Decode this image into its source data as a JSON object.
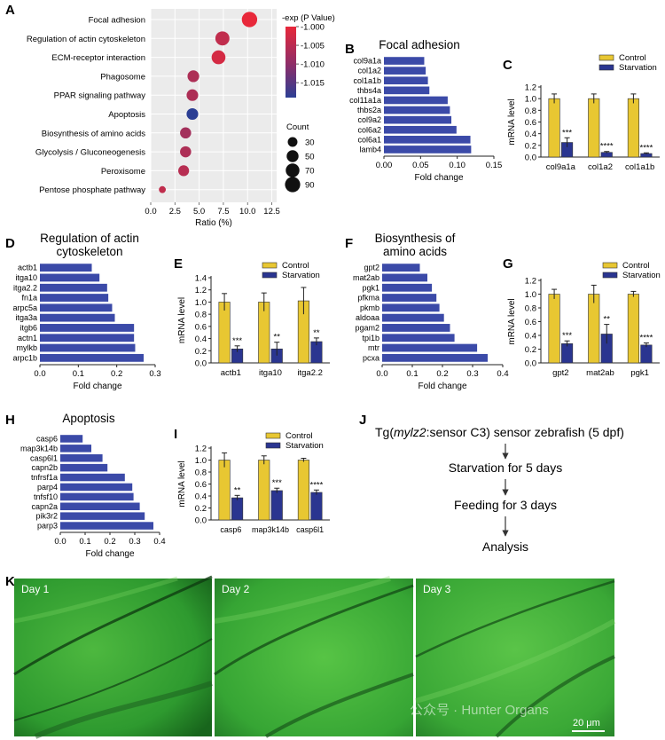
{
  "colors": {
    "hbar": "#3b4aa8",
    "control": "#e8c732",
    "starvation": "#2a3590",
    "dot_high": "#e4303b",
    "dot_low": "#2c4593",
    "grad_top": "#e8283a",
    "grad_bottom": "#2c3f94",
    "arrow": "#333333",
    "micro_bg": "#2f9a2e"
  },
  "panel_letters": [
    "A",
    "B",
    "C",
    "D",
    "E",
    "F",
    "G",
    "H",
    "I",
    "J",
    "K"
  ],
  "chart_data": [
    {
      "panel": "A",
      "type": "scatter",
      "categories": [
        "Focal adhesion",
        "Regulation of actin cytoskeleton",
        "ECM-receptor interaction",
        "Phagosome",
        "PPAR signaling pathway",
        "Apoptosis",
        "Biosynthesis of amino acids",
        "Glycolysis / Gluconeogenesis",
        "Peroxisome",
        "Pentose phosphate pathway"
      ],
      "x": [
        10.2,
        7.4,
        7.0,
        4.4,
        4.3,
        4.3,
        3.6,
        3.6,
        3.4,
        1.2
      ],
      "count": [
        92,
        75,
        72,
        48,
        47,
        47,
        42,
        42,
        40,
        12
      ],
      "neglogp": [
        -1.0,
        -1.004,
        -1.002,
        -1.006,
        -1.006,
        -1.019,
        -1.007,
        -1.006,
        -1.005,
        -1.004
      ],
      "xlabel": "Ratio (%)",
      "xticks": [
        0.0,
        2.5,
        5.0,
        7.5,
        10.0,
        12.5
      ],
      "xtick_labels": [
        "0.0",
        "2.5",
        "5.0",
        "7.5",
        "10.0",
        "12.5"
      ],
      "xlim": [
        0,
        13
      ],
      "colorbar_title": "-exp (P Value)",
      "colorbar_ticks": [
        "-1.000",
        "-1.005",
        "-1.010",
        "-1.015"
      ],
      "colorbar_range": [
        -1.019,
        -1.0
      ],
      "size_legend_title": "Count",
      "size_legend": [
        30,
        50,
        70,
        90
      ]
    },
    {
      "panel": "B",
      "type": "bar",
      "orientation": "horizontal",
      "title": "Focal adhesion",
      "categories": [
        "col9a1a",
        "col1a2",
        "col1a1b",
        "thbs4a",
        "col11a1a",
        "thbs2a",
        "col9a2",
        "col6a2",
        "col6a1",
        "lamb4"
      ],
      "values": [
        0.055,
        0.057,
        0.06,
        0.062,
        0.087,
        0.09,
        0.092,
        0.099,
        0.118,
        0.119
      ],
      "xlabel": "Fold change",
      "xticks": [
        "0.00",
        "0.05",
        "0.10",
        "0.15"
      ],
      "xlim": [
        0,
        0.15
      ]
    },
    {
      "panel": "C",
      "type": "bar",
      "orientation": "vertical",
      "ylabel": "mRNA level",
      "categories": [
        "col9a1a",
        "col1a2",
        "col1a1b"
      ],
      "series": [
        {
          "name": "Control",
          "values": [
            1.0,
            1.0,
            1.0
          ],
          "errors": [
            0.08,
            0.08,
            0.08
          ]
        },
        {
          "name": "Starvation",
          "values": [
            0.25,
            0.08,
            0.06
          ],
          "errors": [
            0.08,
            0.015,
            0.012
          ]
        }
      ],
      "significance": [
        "***",
        "****",
        "****"
      ],
      "yticks": [
        "0.0",
        "0.2",
        "0.4",
        "0.6",
        "0.8",
        "1.0",
        "1.2"
      ],
      "ylim": [
        0,
        1.2
      ]
    },
    {
      "panel": "D",
      "type": "bar",
      "orientation": "horizontal",
      "title_lines": [
        "Regulation of actin",
        "cytoskeleton"
      ],
      "categories": [
        "actb1",
        "itga10",
        "itga2.2",
        "fn1a",
        "arpc5a",
        "itga3a",
        "itgb6",
        "actn1",
        "mylkb",
        "arpc1b"
      ],
      "values": [
        0.135,
        0.155,
        0.175,
        0.178,
        0.188,
        0.195,
        0.245,
        0.245,
        0.248,
        0.27
      ],
      "xlabel": "Fold change",
      "xticks": [
        "0.0",
        "0.1",
        "0.2",
        "0.3"
      ],
      "xlim": [
        0,
        0.3
      ]
    },
    {
      "panel": "E",
      "type": "bar",
      "orientation": "vertical",
      "ylabel": "mRNA level",
      "categories": [
        "actb1",
        "itga10",
        "itga2.2"
      ],
      "series": [
        {
          "name": "Control",
          "values": [
            1.0,
            1.0,
            1.02
          ],
          "errors": [
            0.14,
            0.15,
            0.22
          ]
        },
        {
          "name": "Starvation",
          "values": [
            0.23,
            0.23,
            0.35
          ],
          "errors": [
            0.05,
            0.11,
            0.06
          ]
        }
      ],
      "significance": [
        "***",
        "**",
        "**"
      ],
      "yticks": [
        "0.0",
        "0.2",
        "0.4",
        "0.6",
        "0.8",
        "1.0",
        "1.2",
        "1.4"
      ],
      "ylim": [
        0,
        1.4
      ]
    },
    {
      "panel": "F",
      "type": "bar",
      "orientation": "horizontal",
      "title_lines": [
        "Biosynthesis of",
        "amino acids"
      ],
      "categories": [
        "gpt2",
        "mat2ab",
        "pgk1",
        "pfkma",
        "pkmb",
        "aldoaa",
        "pgam2",
        "tpi1b",
        "mtr",
        "pcxa"
      ],
      "values": [
        0.125,
        0.15,
        0.165,
        0.18,
        0.19,
        0.205,
        0.225,
        0.24,
        0.315,
        0.35
      ],
      "xlabel": "Fold change",
      "xticks": [
        "0.0",
        "0.1",
        "0.2",
        "0.3",
        "0.4"
      ],
      "xlim": [
        0,
        0.4
      ]
    },
    {
      "panel": "G",
      "type": "bar",
      "orientation": "vertical",
      "ylabel": "mRNA level",
      "categories": [
        "gpt2",
        "mat2ab",
        "pgk1"
      ],
      "series": [
        {
          "name": "Control",
          "values": [
            1.0,
            1.0,
            1.0
          ],
          "errors": [
            0.07,
            0.13,
            0.04
          ]
        },
        {
          "name": "Starvation",
          "values": [
            0.28,
            0.42,
            0.26
          ],
          "errors": [
            0.04,
            0.14,
            0.03
          ]
        }
      ],
      "significance": [
        "***",
        "**",
        "****"
      ],
      "yticks": [
        "0.0",
        "0.2",
        "0.4",
        "0.6",
        "0.8",
        "1.0",
        "1.2"
      ],
      "ylim": [
        0,
        1.2
      ]
    },
    {
      "panel": "H",
      "type": "bar",
      "orientation": "horizontal",
      "title": "Apoptosis",
      "categories": [
        "casp6",
        "map3k14b",
        "casp6l1",
        "capn2b",
        "tnfrsf1a",
        "parp4",
        "tnfsf10",
        "capn2a",
        "pik3r2",
        "parp3"
      ],
      "values": [
        0.09,
        0.125,
        0.17,
        0.19,
        0.26,
        0.29,
        0.295,
        0.32,
        0.34,
        0.375
      ],
      "xlabel": "Fold change",
      "xticks": [
        "0.0",
        "0.1",
        "0.2",
        "0.3",
        "0.4"
      ],
      "xlim": [
        0,
        0.4
      ]
    },
    {
      "panel": "I",
      "type": "bar",
      "orientation": "vertical",
      "ylabel": "mRNA level",
      "categories": [
        "casp6",
        "map3k14b",
        "casp6l1"
      ],
      "series": [
        {
          "name": "Control",
          "values": [
            1.0,
            1.0,
            1.0
          ],
          "errors": [
            0.12,
            0.07,
            0.03
          ]
        },
        {
          "name": "Starvation",
          "values": [
            0.37,
            0.49,
            0.46
          ],
          "errors": [
            0.04,
            0.04,
            0.04
          ]
        }
      ],
      "significance": [
        "**",
        "***",
        "****"
      ],
      "yticks": [
        "0.0",
        "0.2",
        "0.4",
        "0.6",
        "0.8",
        "1.0",
        "1.2"
      ],
      "ylim": [
        0,
        1.2
      ]
    }
  ],
  "flowchart": {
    "title_prefix": "Tg(",
    "title_italic": "mylz2",
    "title_suffix": ":sensor C3) sensor zebrafish (5 dpf)",
    "steps": [
      "Starvation for 5 days",
      "Feeding for 3 days",
      "Analysis"
    ]
  },
  "micrographs": {
    "labels": [
      "Day 1",
      "Day 2",
      "Day 3"
    ],
    "scalebar": "20 μm",
    "watermark": "公众号 · Hunter Organs"
  }
}
